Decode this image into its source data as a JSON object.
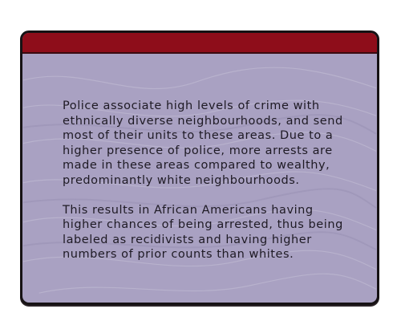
{
  "card": {
    "header_color": "#8e0d1a",
    "body_color": "#a9a1c2",
    "paragraphs": [
      "Police associate high levels of crime with\nethnically diverse neighbourhoods, and send\nmost of their units to these areas. Due to a\nhigher presence of police, more arrests are\nmade in these areas compared to wealthy,\npredominantly white neighbourhoods.",
      "This results in African Americans having\nhigher chances of being arrested, thus being\nlabeled as recidivists and having higher\nnumbers of prior counts than whites."
    ]
  }
}
